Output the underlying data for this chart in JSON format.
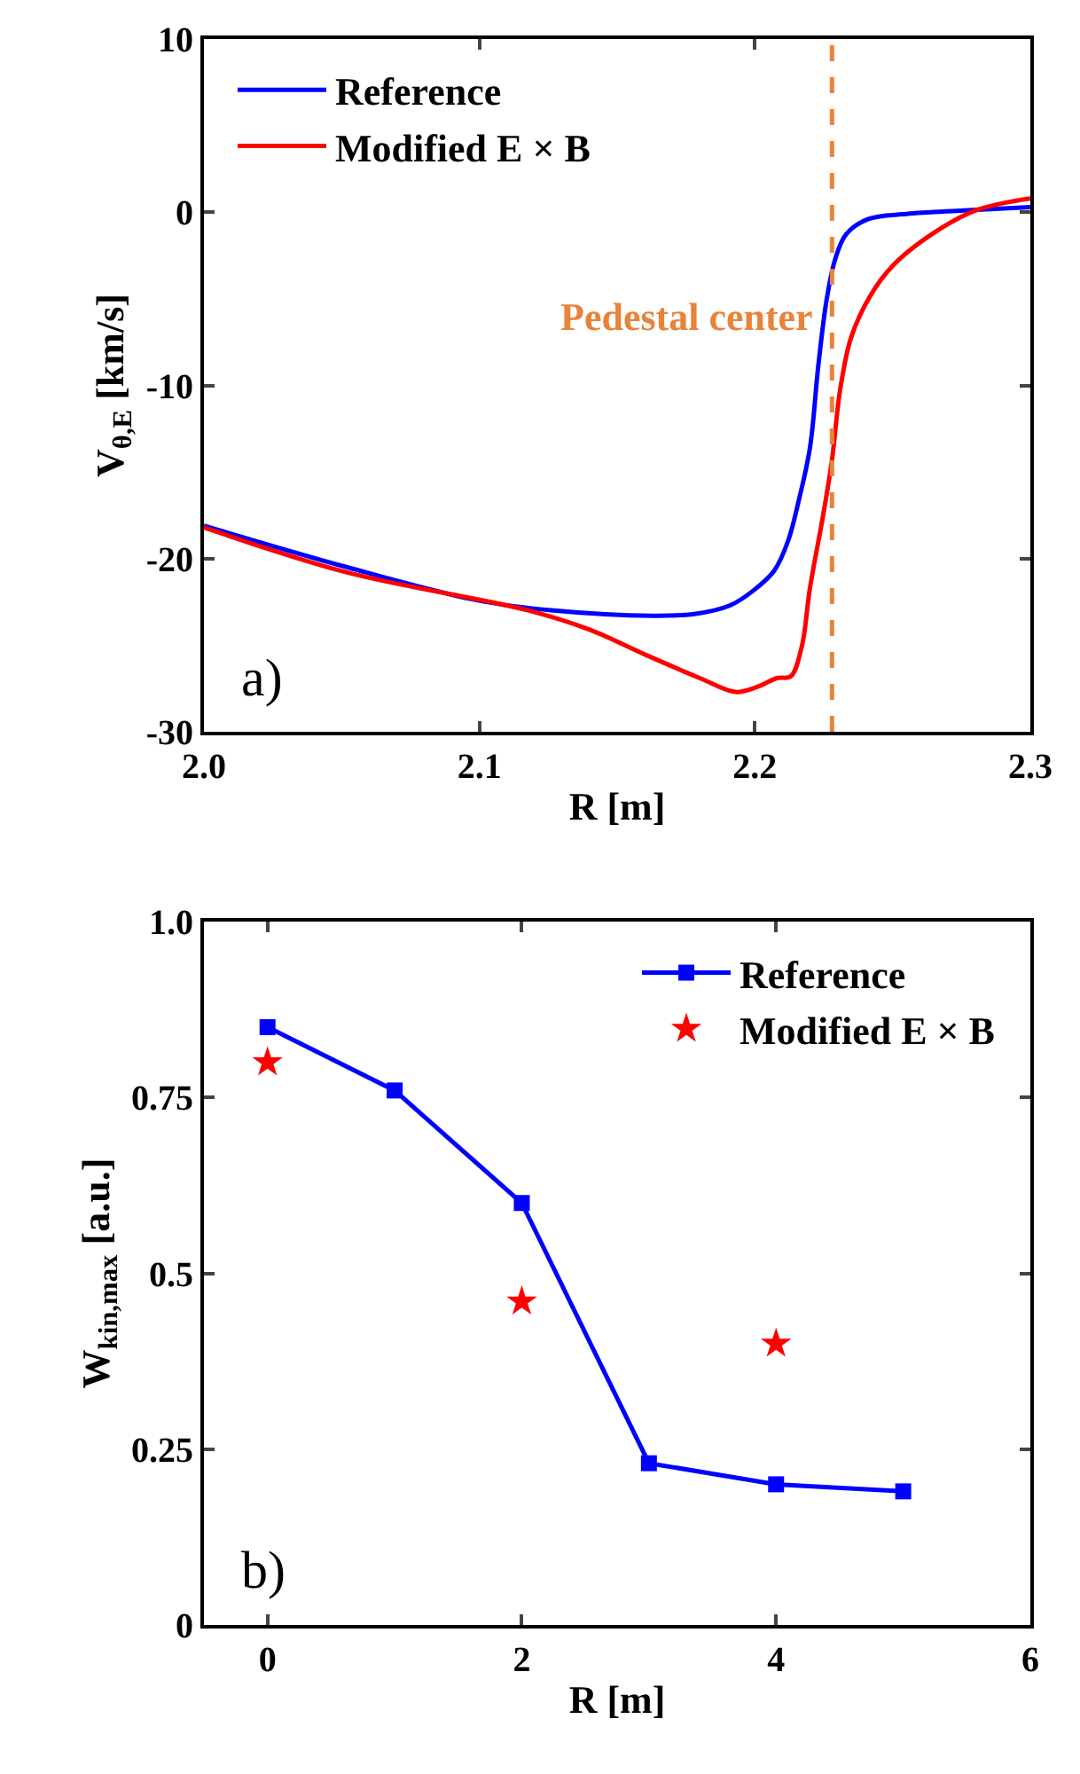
{
  "chart_data": [
    {
      "type": "line",
      "xlabel": "R [m]",
      "ylabel": "V$_{θ,E}$ [km/s]",
      "xlim": [
        2.0,
        2.3
      ],
      "xticks": [
        {
          "value": 2.0,
          "label": "2.0"
        },
        2.1,
        2.2,
        {
          "value": 2.3,
          "label": "2.3"
        }
      ],
      "ylim": [
        -30,
        10
      ],
      "yticks": [
        -30,
        -20,
        -10,
        0,
        10
      ],
      "legend": "top left",
      "marker": "none",
      "line_style": "solid",
      "series": [
        {
          "name": "Reference",
          "color": "#0000ff",
          "x": [
            2.0,
            2.052,
            2.099,
            2.127,
            2.163,
            2.178,
            2.191,
            2.199,
            2.207,
            2.212,
            2.216,
            2.22,
            2.223,
            2.226,
            2.229,
            2.233,
            2.241,
            2.255,
            2.276,
            2.3
          ],
          "values": [
            -18.1,
            -20.5,
            -22.4,
            -23.0,
            -23.3,
            -23.2,
            -22.7,
            -21.9,
            -20.7,
            -19.0,
            -16.6,
            -13.6,
            -8.9,
            -5.1,
            -2.8,
            -1.3,
            -0.4,
            -0.1,
            0.1,
            0.3
          ]
        },
        {
          "name": "Modified E × B",
          "color": "#ff0000",
          "x": [
            2.0,
            2.052,
            2.118,
            2.14,
            2.161,
            2.18,
            2.193,
            2.201,
            2.208,
            2.213,
            2.217,
            2.22,
            2.225,
            2.228,
            2.231,
            2.235,
            2.242,
            2.25,
            2.263,
            2.28,
            2.3
          ],
          "values": [
            -18.2,
            -20.8,
            -23.0,
            -24.1,
            -25.6,
            -26.9,
            -27.7,
            -27.4,
            -26.9,
            -26.8,
            -25.1,
            -21.7,
            -17.3,
            -14.3,
            -10.2,
            -7.2,
            -4.8,
            -3.1,
            -1.4,
            0.1,
            0.8
          ]
        }
      ],
      "ref_lines": [
        {
          "axis": "x",
          "value": 2.228,
          "label": "Pedestal center",
          "color": "#e8833a",
          "line_style": "dashed"
        }
      ],
      "annotations": [
        "a)"
      ]
    },
    {
      "type": "line",
      "xlabel": "R [m]",
      "ylabel": "W$_{kin,max}$ [a.u.]",
      "xlim": [
        -0.5,
        6
      ],
      "xticks": [
        0,
        2,
        4,
        6
      ],
      "ylim": [
        0,
        1.0
      ],
      "yticks": [
        0,
        0.25,
        0.5,
        0.75,
        {
          "value": 1.0,
          "label": "1.0"
        }
      ],
      "legend": "top right",
      "series": [
        {
          "name": "Reference",
          "color": "#0000ff",
          "marker": "square",
          "x": [
            0,
            1,
            2,
            3,
            4,
            5
          ],
          "values": [
            0.85,
            0.76,
            0.6,
            0.23,
            0.2,
            0.19
          ]
        },
        {
          "name": "Modified E × B",
          "type": "scatter",
          "color": "#ff0000",
          "marker": "star",
          "x": [
            0,
            2,
            4
          ],
          "values": [
            0.8,
            0.46,
            0.4
          ]
        }
      ],
      "annotations": [
        "b)"
      ]
    }
  ]
}
